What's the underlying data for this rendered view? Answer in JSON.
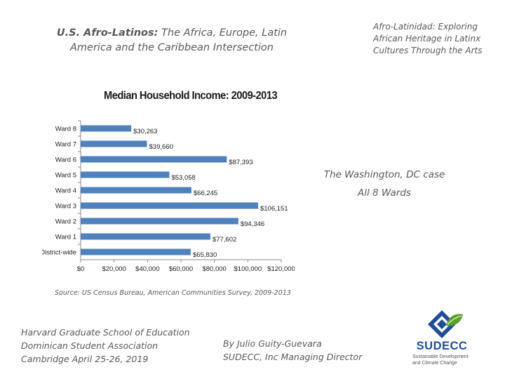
{
  "slide": {
    "title_left_bold": "U.S. Afro-Latinos:",
    "title_left_rest": " The Africa, Europe, Latin America and the Caribbean Intersection",
    "title_right": [
      "Afro-Latinidad: Exploring",
      "African Heritage in Latinx",
      "Cultures Through the Arts"
    ],
    "case_lines": [
      "The Washington, DC case",
      "All 8 Wards"
    ],
    "source": "Source: US Census Bureau, American Communities Survey, 2009-2013",
    "institution_lines": [
      "Harvard Graduate School of Education",
      "Dominican Student Association",
      "Cambridge April 25-26, 2019"
    ],
    "author_lines": [
      "By Julio Guity-Guevara",
      "SUDECC, Inc Managing Director"
    ],
    "logo_name": "SUDECC",
    "logo_tagline": [
      "Sustainable Development",
      "and Climate Change"
    ]
  },
  "colors": {
    "bar": "#4f81bd",
    "logo_blue": "#1f4e96",
    "logo_green": "#5aa02c"
  },
  "chart_data": {
    "type": "bar",
    "orientation": "horizontal",
    "title": "Median Household Income: 2009-2013",
    "categories": [
      "Ward 8",
      "Ward 7",
      "Ward 6",
      "Ward 5",
      "Ward 4",
      "Ward 3",
      "Ward 2",
      "Ward 1",
      "District-wide"
    ],
    "values": [
      30263,
      39660,
      87393,
      53058,
      66245,
      106151,
      94346,
      77602,
      65830
    ],
    "value_labels": [
      "$30,263",
      "$39,660",
      "$87,393",
      "$53,058",
      "$66,245",
      "$106,151",
      "$94,346",
      "$77,602",
      "$65,830"
    ],
    "xlim": [
      0,
      120000
    ],
    "xticks": [
      0,
      20000,
      40000,
      60000,
      80000,
      100000,
      120000
    ],
    "xtick_labels": [
      "$0",
      "$20,000",
      "$40,000",
      "$60,000",
      "$80,000",
      "$100,000",
      "$120,000"
    ],
    "xlabel": "",
    "ylabel": "",
    "grid": false,
    "legend": "none"
  }
}
